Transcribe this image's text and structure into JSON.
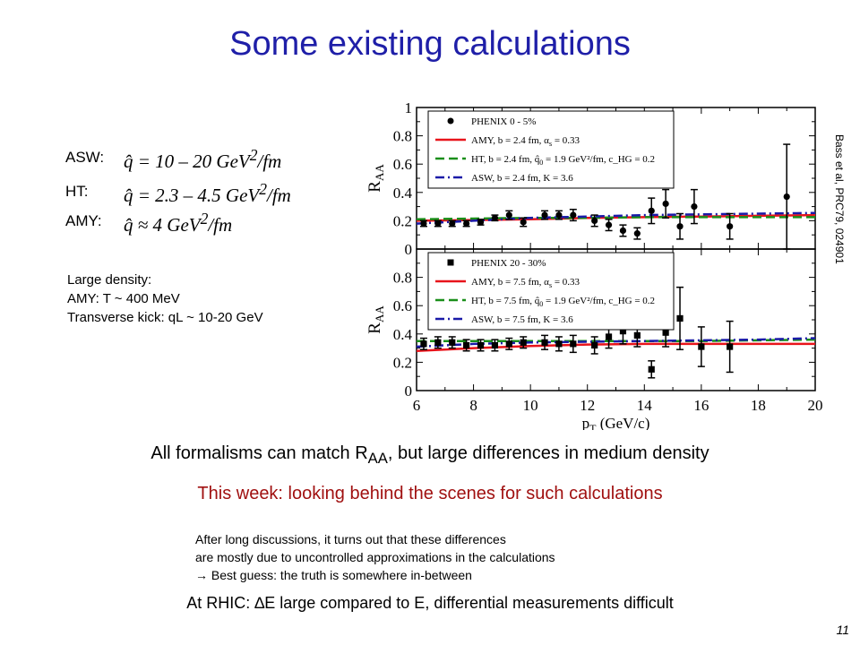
{
  "slide": {
    "title": "Some existing calculations",
    "page_number": "11",
    "citation": "Bass et al, PRC79, 024901",
    "models": [
      {
        "label": "ASW:",
        "formula_prefix": "q̂ = 10 – 20 GeV",
        "formula_suffix": "/fm"
      },
      {
        "label": "HT:",
        "formula_prefix": "q̂ = 2.3 – 4.5 GeV",
        "formula_suffix": "/fm"
      },
      {
        "label": "AMY:",
        "formula_prefix": "q̂ ≈ 4 GeV",
        "formula_suffix": "/fm"
      }
    ],
    "notes": [
      "Large density:",
      "AMY: T ~ 400 MeV",
      "Transverse kick: qL ~ 10-20 GeV"
    ],
    "summary_before": "All formalisms can match R",
    "summary_sub": "AA",
    "summary_after": ", but large differences in medium density",
    "this_week": "This week: looking behind the scenes for such calculations",
    "discussion": [
      "After long discussions, it turns out that these differences",
      "are mostly due to uncontrolled approximations in the calculations",
      " Best guess: the truth is somewhere in-between"
    ],
    "rhic_prefix": "At RHIC: ",
    "rhic_delta": "∆",
    "rhic_rest": "E large compared to E, differential measurements difficult"
  },
  "chart_data": [
    {
      "type": "scatter",
      "panel": "top",
      "ylabel": "R_AA",
      "xlim": [
        6,
        20
      ],
      "ylim": [
        0,
        1
      ],
      "legend_position": "top",
      "data_series": {
        "name": "PHENIX 0 - 5%",
        "marker": "circle",
        "points": [
          {
            "x": 6.25,
            "y": 0.18,
            "err": 0.02
          },
          {
            "x": 6.75,
            "y": 0.18,
            "err": 0.02
          },
          {
            "x": 7.25,
            "y": 0.18,
            "err": 0.02
          },
          {
            "x": 7.75,
            "y": 0.18,
            "err": 0.02
          },
          {
            "x": 8.25,
            "y": 0.19,
            "err": 0.02
          },
          {
            "x": 8.75,
            "y": 0.22,
            "err": 0.02
          },
          {
            "x": 9.25,
            "y": 0.24,
            "err": 0.03
          },
          {
            "x": 9.75,
            "y": 0.19,
            "err": 0.03
          },
          {
            "x": 10.5,
            "y": 0.24,
            "err": 0.03
          },
          {
            "x": 11.0,
            "y": 0.24,
            "err": 0.03
          },
          {
            "x": 11.5,
            "y": 0.24,
            "err": 0.04
          },
          {
            "x": 12.25,
            "y": 0.2,
            "err": 0.04
          },
          {
            "x": 12.75,
            "y": 0.17,
            "err": 0.04
          },
          {
            "x": 13.25,
            "y": 0.13,
            "err": 0.04
          },
          {
            "x": 13.75,
            "y": 0.11,
            "err": 0.04
          },
          {
            "x": 14.25,
            "y": 0.27,
            "err": 0.09
          },
          {
            "x": 14.75,
            "y": 0.32,
            "err": 0.1
          },
          {
            "x": 15.25,
            "y": 0.16,
            "err": 0.09
          },
          {
            "x": 15.75,
            "y": 0.3,
            "err": 0.12
          },
          {
            "x": 17.0,
            "y": 0.16,
            "err": 0.09
          },
          {
            "x": 19.0,
            "y": 0.37,
            "err": 0.37
          }
        ]
      },
      "model_curves": [
        {
          "name": "AMY, b = 2.4 fm, α_s = 0.33",
          "color": "#e8141b",
          "style": "solid",
          "x": [
            6,
            8,
            10,
            12,
            14,
            16,
            18,
            20
          ],
          "y": [
            0.2,
            0.205,
            0.21,
            0.22,
            0.225,
            0.23,
            0.235,
            0.24
          ]
        },
        {
          "name": "HT, b = 2.4 fm, q̂_0 = 1.9 GeV²/fm, c_HG = 0.2",
          "color": "#1a8f1a",
          "style": "dashed",
          "x": [
            6,
            8,
            10,
            12,
            14,
            16,
            18,
            20
          ],
          "y": [
            0.21,
            0.215,
            0.22,
            0.22,
            0.225,
            0.225,
            0.225,
            0.225
          ]
        },
        {
          "name": "ASW, b = 2.4 fm, K = 3.6",
          "color": "#1a1aa8",
          "style": "dashdot",
          "x": [
            6,
            8,
            10,
            12,
            14,
            16,
            18,
            20
          ],
          "y": [
            0.18,
            0.2,
            0.22,
            0.23,
            0.24,
            0.245,
            0.25,
            0.255
          ]
        }
      ]
    },
    {
      "type": "scatter",
      "panel": "bottom",
      "xlabel": "p_T (GeV/c)",
      "ylabel": "R_AA",
      "xlim": [
        6,
        20
      ],
      "ylim": [
        0,
        1
      ],
      "x_ticks": [
        6,
        8,
        10,
        12,
        14,
        16,
        18,
        20
      ],
      "legend_position": "top",
      "data_series": {
        "name": "PHENIX 20 - 30%",
        "marker": "square",
        "points": [
          {
            "x": 6.25,
            "y": 0.33,
            "err": 0.04
          },
          {
            "x": 6.75,
            "y": 0.34,
            "err": 0.04
          },
          {
            "x": 7.25,
            "y": 0.34,
            "err": 0.04
          },
          {
            "x": 7.75,
            "y": 0.32,
            "err": 0.04
          },
          {
            "x": 8.25,
            "y": 0.32,
            "err": 0.04
          },
          {
            "x": 8.75,
            "y": 0.32,
            "err": 0.04
          },
          {
            "x": 9.25,
            "y": 0.33,
            "err": 0.04
          },
          {
            "x": 9.75,
            "y": 0.34,
            "err": 0.04
          },
          {
            "x": 10.5,
            "y": 0.34,
            "err": 0.05
          },
          {
            "x": 11.0,
            "y": 0.33,
            "err": 0.05
          },
          {
            "x": 11.5,
            "y": 0.33,
            "err": 0.06
          },
          {
            "x": 12.25,
            "y": 0.32,
            "err": 0.06
          },
          {
            "x": 12.75,
            "y": 0.38,
            "err": 0.08
          },
          {
            "x": 13.25,
            "y": 0.42,
            "err": 0.09
          },
          {
            "x": 13.75,
            "y": 0.39,
            "err": 0.08
          },
          {
            "x": 14.25,
            "y": 0.15,
            "err": 0.06
          },
          {
            "x": 14.75,
            "y": 0.41,
            "err": 0.1
          },
          {
            "x": 15.25,
            "y": 0.51,
            "err": 0.22
          },
          {
            "x": 16.0,
            "y": 0.31,
            "err": 0.14
          },
          {
            "x": 17.0,
            "y": 0.31,
            "err": 0.18
          }
        ]
      },
      "model_curves": [
        {
          "name": "AMY, b = 7.5 fm, α_s = 0.33",
          "color": "#e8141b",
          "style": "solid",
          "x": [
            6,
            8,
            10,
            12,
            14,
            16,
            18,
            20
          ],
          "y": [
            0.28,
            0.3,
            0.315,
            0.325,
            0.33,
            0.33,
            0.33,
            0.33
          ]
        },
        {
          "name": "HT, b = 7.5 fm, q̂_0 = 1.9 GeV²/fm, c_HG = 0.2",
          "color": "#1a8f1a",
          "style": "dashed",
          "x": [
            6,
            8,
            10,
            12,
            14,
            16,
            18,
            20
          ],
          "y": [
            0.35,
            0.35,
            0.35,
            0.35,
            0.35,
            0.35,
            0.355,
            0.36
          ]
        },
        {
          "name": "ASW, b = 7.5 fm, K = 3.6",
          "color": "#1a1aa8",
          "style": "dashdot",
          "x": [
            6,
            8,
            10,
            12,
            14,
            16,
            18,
            20
          ],
          "y": [
            0.31,
            0.33,
            0.34,
            0.345,
            0.35,
            0.355,
            0.36,
            0.37
          ]
        }
      ]
    }
  ]
}
